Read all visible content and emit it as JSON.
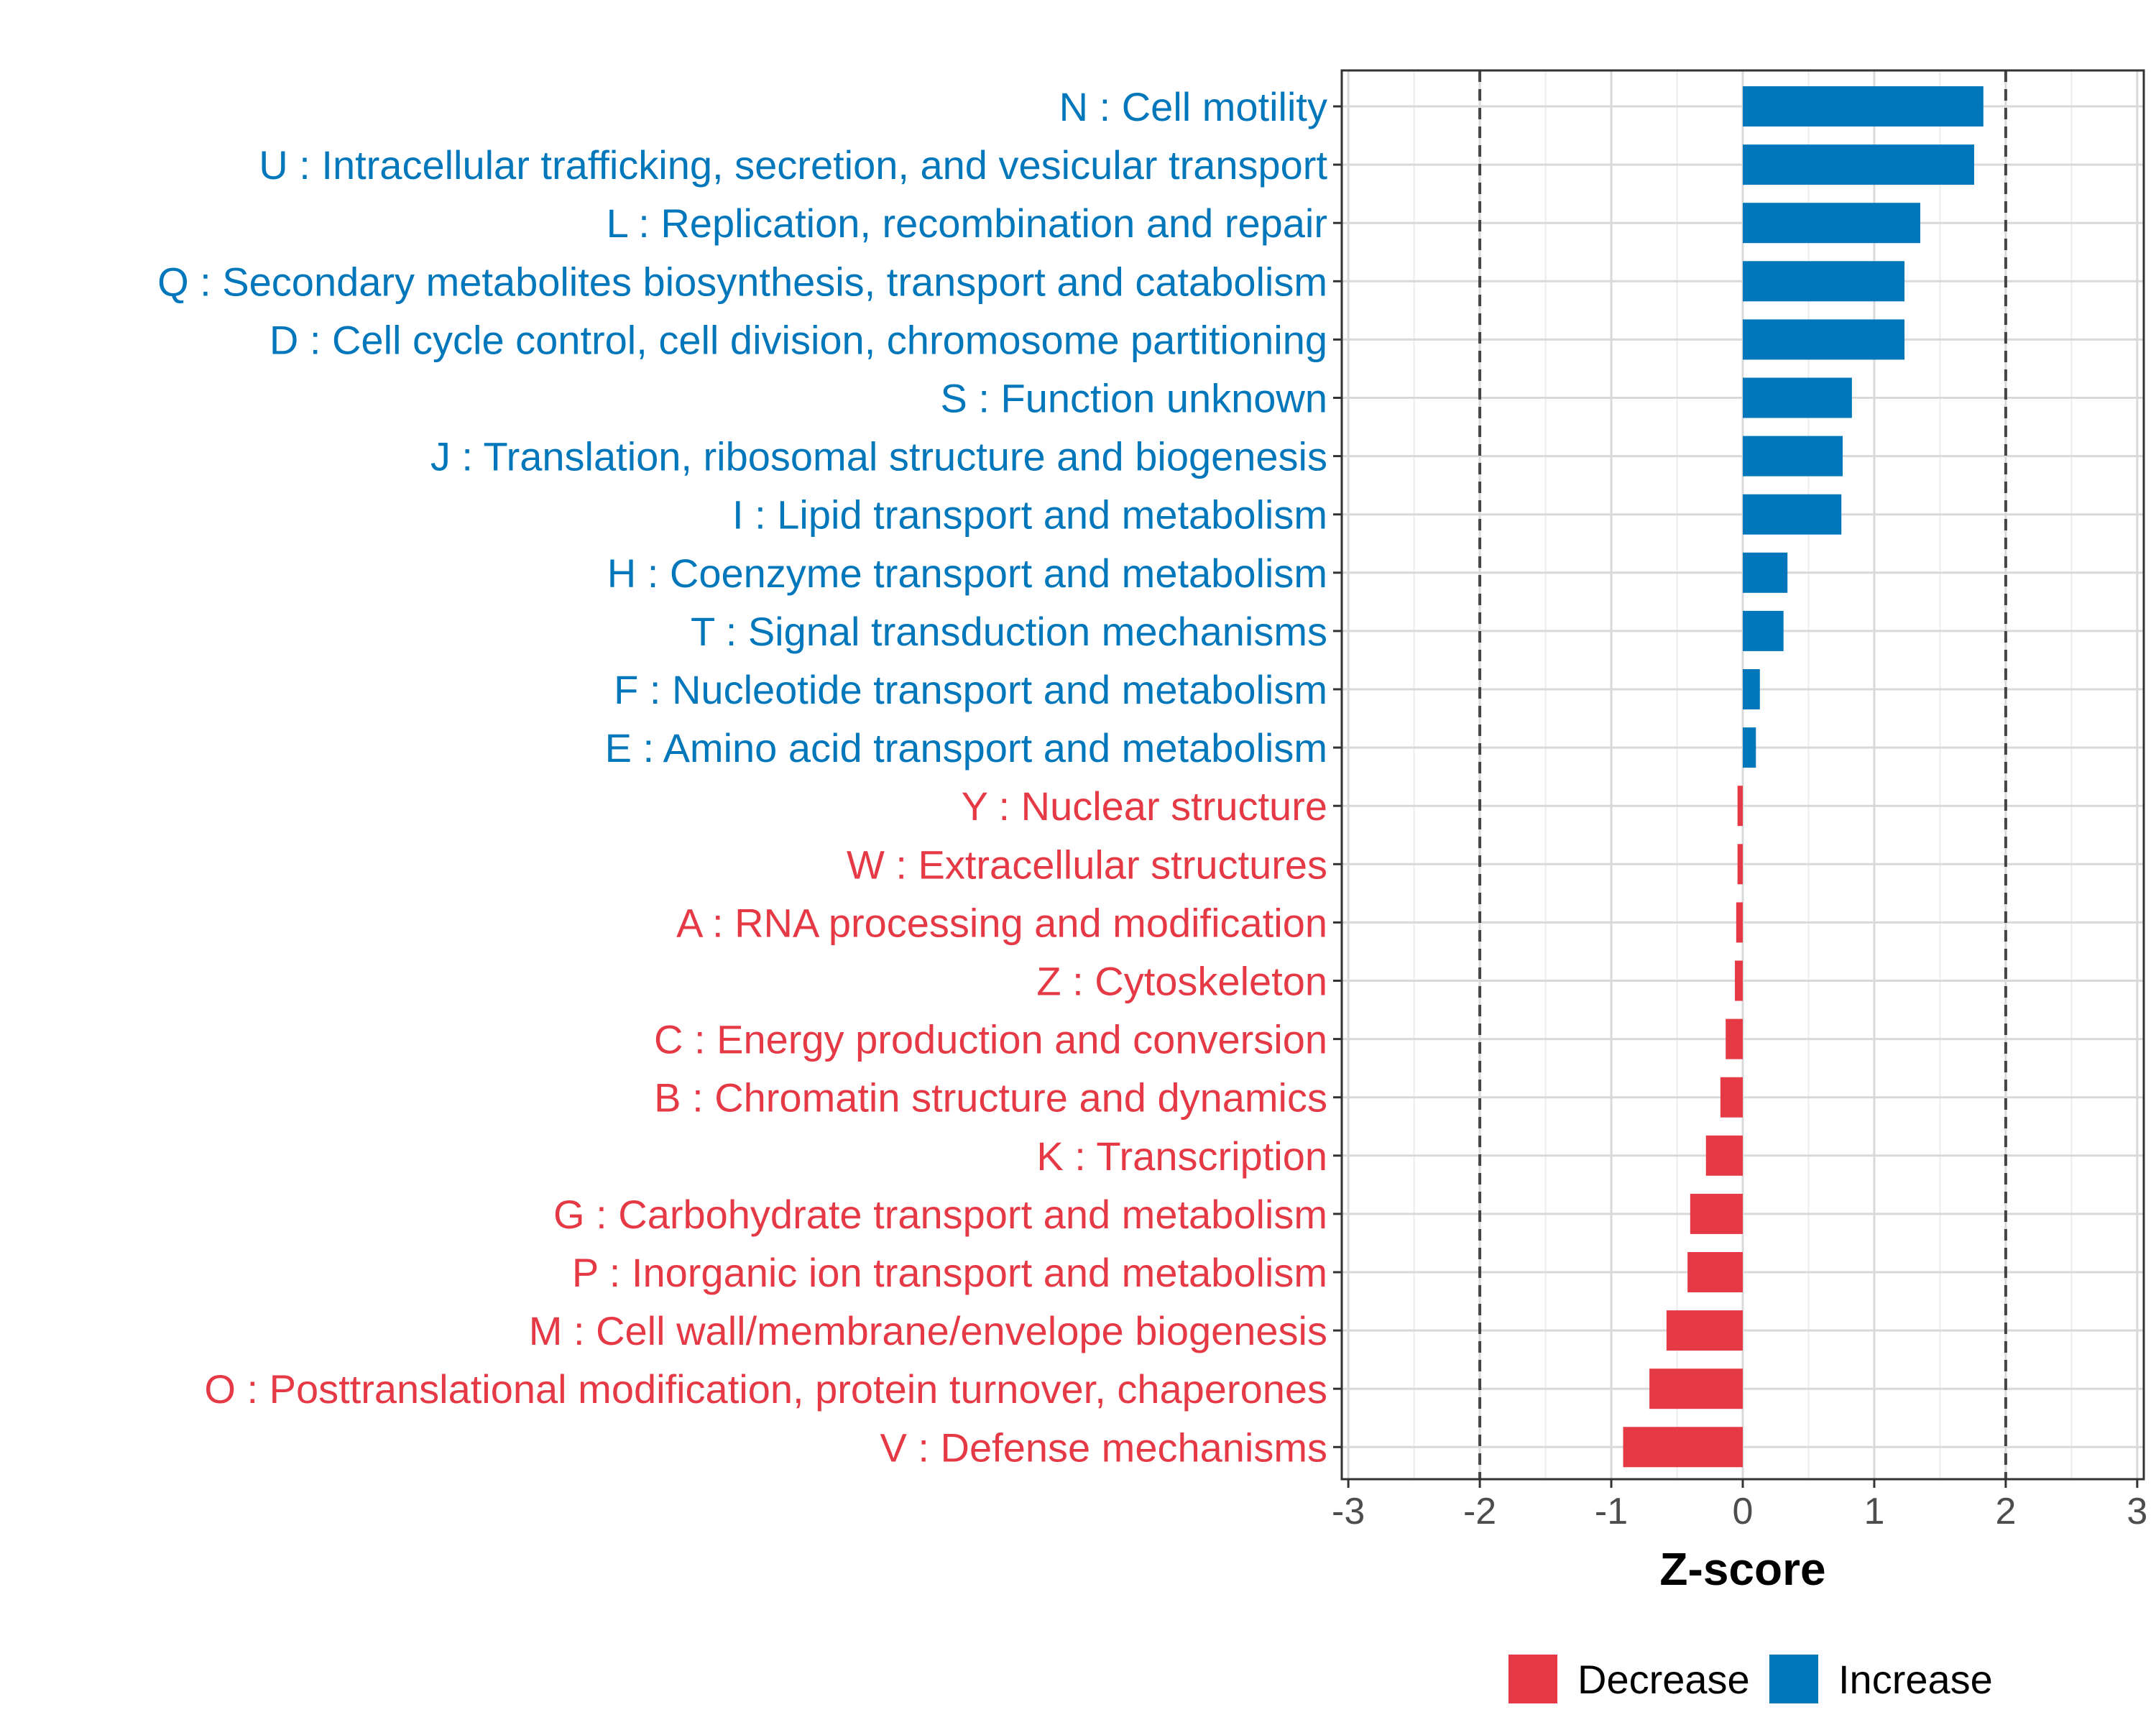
{
  "chart_data": {
    "type": "bar",
    "orientation": "horizontal",
    "title": "",
    "xlabel": "Z-score",
    "ylabel": "",
    "xlim": [
      -3.05,
      3.05
    ],
    "xticks": [
      -3,
      -2,
      -1,
      0,
      1,
      2,
      3
    ],
    "threshold_lines": [
      -2,
      2
    ],
    "grid": true,
    "legend_position": "bottom",
    "colors": {
      "Increase": "#0077bb",
      "Decrease": "#e63946"
    },
    "legend": [
      {
        "label": "Decrease",
        "color": "#e63946"
      },
      {
        "label": "Increase",
        "color": "#0077bb"
      }
    ],
    "categories": [
      {
        "label": "N : Cell motility",
        "value": 1.83,
        "direction": "Increase"
      },
      {
        "label": "U : Intracellular trafficking, secretion, and vesicular transport",
        "value": 1.76,
        "direction": "Increase"
      },
      {
        "label": "L : Replication, recombination and repair",
        "value": 1.35,
        "direction": "Increase"
      },
      {
        "label": "Q : Secondary metabolites biosynthesis, transport and catabolism",
        "value": 1.23,
        "direction": "Increase"
      },
      {
        "label": "D : Cell cycle control, cell division, chromosome partitioning",
        "value": 1.23,
        "direction": "Increase"
      },
      {
        "label": "S : Function unknown",
        "value": 0.83,
        "direction": "Increase"
      },
      {
        "label": "J : Translation, ribosomal structure and biogenesis",
        "value": 0.76,
        "direction": "Increase"
      },
      {
        "label": "I : Lipid transport and metabolism",
        "value": 0.75,
        "direction": "Increase"
      },
      {
        "label": "H : Coenzyme transport and metabolism",
        "value": 0.34,
        "direction": "Increase"
      },
      {
        "label": "T : Signal transduction mechanisms",
        "value": 0.31,
        "direction": "Increase"
      },
      {
        "label": "F : Nucleotide transport and metabolism",
        "value": 0.13,
        "direction": "Increase"
      },
      {
        "label": "E : Amino acid transport and metabolism",
        "value": 0.1,
        "direction": "Increase"
      },
      {
        "label": "Y : Nuclear structure",
        "value": -0.04,
        "direction": "Decrease"
      },
      {
        "label": "W : Extracellular structures",
        "value": -0.04,
        "direction": "Decrease"
      },
      {
        "label": "A : RNA processing and modification",
        "value": -0.05,
        "direction": "Decrease"
      },
      {
        "label": "Z : Cytoskeleton",
        "value": -0.06,
        "direction": "Decrease"
      },
      {
        "label": "C : Energy production and conversion",
        "value": -0.13,
        "direction": "Decrease"
      },
      {
        "label": "B : Chromatin structure and dynamics",
        "value": -0.17,
        "direction": "Decrease"
      },
      {
        "label": "K : Transcription",
        "value": -0.28,
        "direction": "Decrease"
      },
      {
        "label": "G : Carbohydrate transport and metabolism",
        "value": -0.4,
        "direction": "Decrease"
      },
      {
        "label": "P : Inorganic ion transport and metabolism",
        "value": -0.42,
        "direction": "Decrease"
      },
      {
        "label": "M : Cell wall/membrane/envelope biogenesis",
        "value": -0.58,
        "direction": "Decrease"
      },
      {
        "label": "O : Posttranslational modification, protein turnover, chaperones",
        "value": -0.71,
        "direction": "Decrease"
      },
      {
        "label": "V : Defense mechanisms",
        "value": -0.91,
        "direction": "Decrease"
      }
    ]
  }
}
